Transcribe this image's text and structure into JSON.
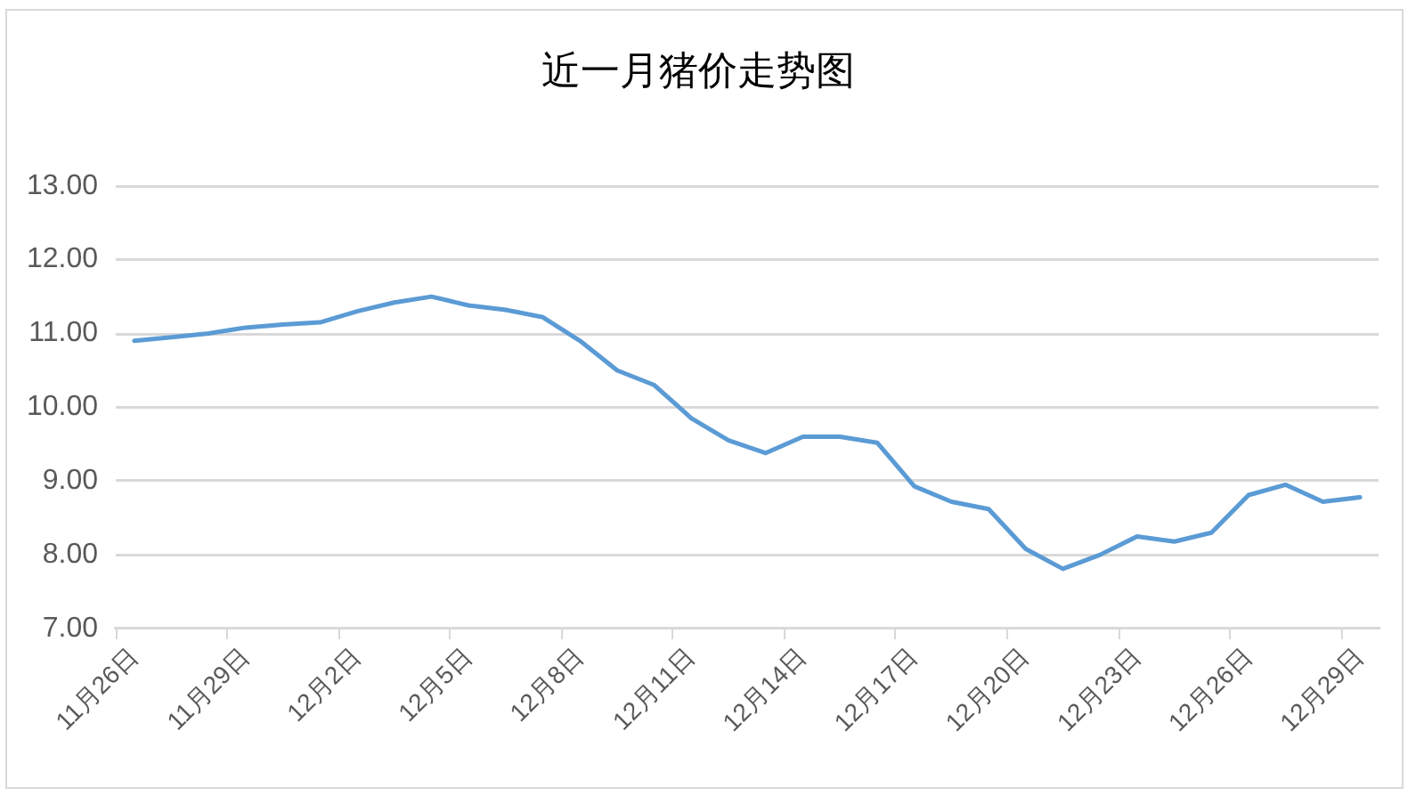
{
  "chart_data": {
    "type": "line",
    "title": "近一月猪价走势图",
    "categories": [
      "11月26日",
      null,
      null,
      "11月29日",
      null,
      null,
      "12月2日",
      null,
      null,
      "12月5日",
      null,
      null,
      "12月8日",
      null,
      null,
      "12月11日",
      null,
      null,
      "12月14日",
      null,
      null,
      "12月17日",
      null,
      null,
      "12月20日",
      null,
      null,
      "12月23日",
      null,
      null,
      "12月26日",
      null,
      null,
      "12月29日"
    ],
    "series": [
      {
        "color": "#5b9bd5",
        "values": [
          10.9,
          10.95,
          11.0,
          11.08,
          11.12,
          11.15,
          11.3,
          11.42,
          11.5,
          11.38,
          11.32,
          11.22,
          10.9,
          10.5,
          10.3,
          9.85,
          9.55,
          9.38,
          9.6,
          9.6,
          9.52,
          8.93,
          8.72,
          8.62,
          8.08,
          7.81,
          8.0,
          8.25,
          8.18,
          8.3,
          8.81,
          8.95,
          8.72,
          8.78
        ]
      }
    ],
    "ylim": [
      7,
      13
    ],
    "yticks": [
      {
        "value": 7,
        "label": "7.00"
      },
      {
        "value": 8,
        "label": "8.00"
      },
      {
        "value": 9,
        "label": "9.00"
      },
      {
        "value": 10,
        "label": "10.00"
      },
      {
        "value": 11,
        "label": "11.00"
      },
      {
        "value": 12,
        "label": "12.00"
      },
      {
        "value": 13,
        "label": "13.00"
      }
    ],
    "grid": "y",
    "marker": "none",
    "line_style": "solid"
  }
}
